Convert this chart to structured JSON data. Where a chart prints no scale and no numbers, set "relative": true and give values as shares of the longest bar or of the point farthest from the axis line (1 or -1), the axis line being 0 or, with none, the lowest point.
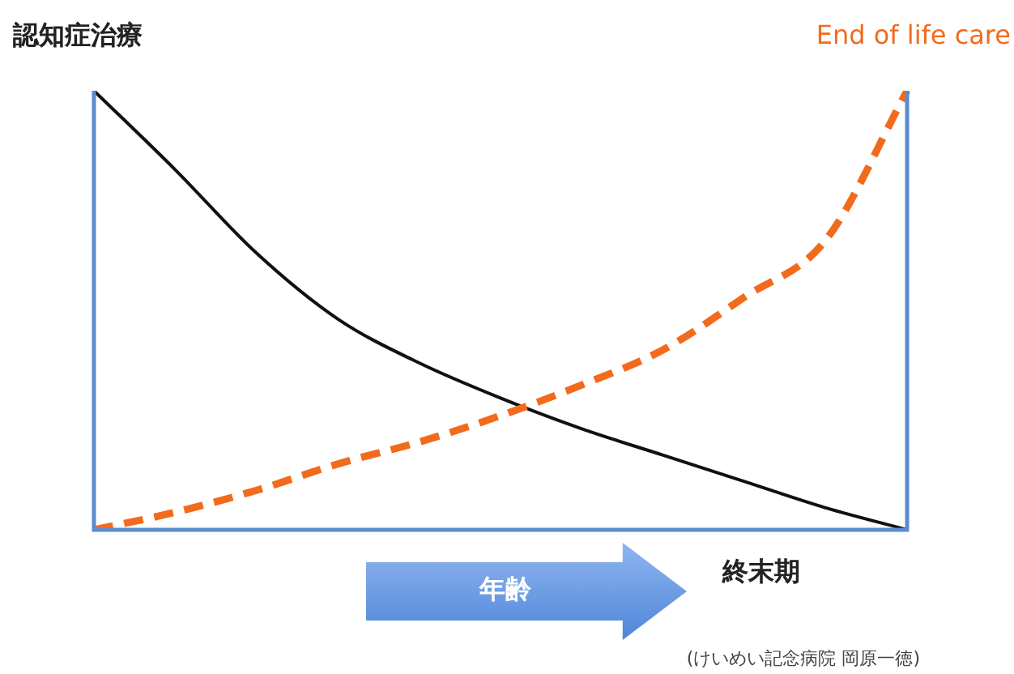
{
  "chart_data": {
    "type": "line",
    "relative": true,
    "marker": "none",
    "xlabel": "年齢",
    "categories": [
      null,
      null,
      null,
      null,
      null,
      null,
      null,
      null,
      null,
      null,
      null
    ],
    "series": [
      {
        "name": "認知症治療",
        "color": "#111111",
        "line_style": "solid",
        "values": [
          1,
          0.82,
          0.63,
          0.48,
          0.38,
          0.3,
          0.23,
          0.17,
          0.11,
          0.05,
          0
        ]
      },
      {
        "name": "End of life care",
        "color": "#f26b1d",
        "line_style": "dashed",
        "values": [
          0,
          0.04,
          0.09,
          0.15,
          0.2,
          0.26,
          0.33,
          0.41,
          0.53,
          0.66,
          1
        ]
      }
    ],
    "annotations": [
      "終末期",
      "(けいめい記念病院 岡原一徳)"
    ]
  }
}
